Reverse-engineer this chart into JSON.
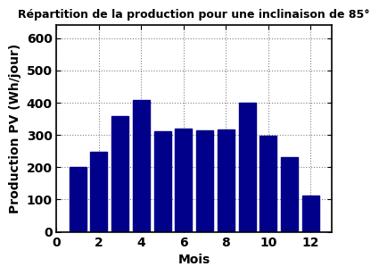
{
  "title": "Répartition de la production pour une inclinaison de 85°",
  "xlabel": "Mois",
  "ylabel": "Production PV (Wh/jour)",
  "months": [
    1,
    2,
    3,
    4,
    5,
    6,
    7,
    8,
    9,
    10,
    11,
    12
  ],
  "values": [
    200,
    248,
    358,
    408,
    312,
    320,
    313,
    318,
    400,
    298,
    230,
    112
  ],
  "bar_color": "#00008B",
  "bar_width": 0.8,
  "xlim": [
    0,
    13
  ],
  "ylim": [
    0,
    640
  ],
  "yticks": [
    0,
    100,
    200,
    300,
    400,
    500,
    600
  ],
  "xticks": [
    0,
    2,
    4,
    6,
    8,
    10,
    12
  ],
  "title_fontsize": 9,
  "label_fontsize": 10,
  "tick_fontsize": 10
}
